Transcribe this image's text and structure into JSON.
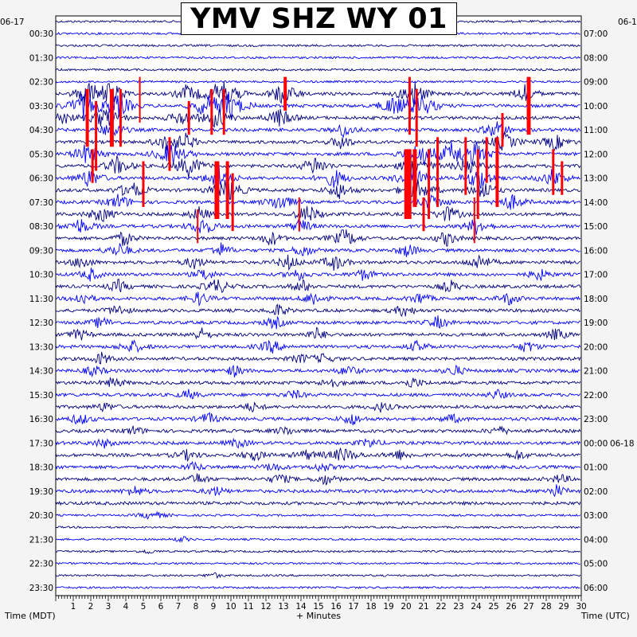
{
  "chart_data": {
    "type": "helicorder",
    "title": "YMV SHZ WY 01",
    "left_date": "06-17",
    "right_date_top": "06-1",
    "right_date_change": "06-18",
    "xlabel": "+ Minutes",
    "ylabel_left": "Time (MDT)",
    "ylabel_right": "Time (UTC)",
    "xlim": [
      0,
      30
    ],
    "x_ticks": [
      "1",
      "2",
      "3",
      "4",
      "5",
      "6",
      "7",
      "8",
      "9",
      "10",
      "11",
      "12",
      "13",
      "14",
      "15",
      "16",
      "17",
      "18",
      "19",
      "20",
      "21",
      "22",
      "23",
      "24",
      "25",
      "26",
      "27",
      "28",
      "29",
      "30"
    ],
    "left_labels": [
      "00:30",
      "01:30",
      "02:30",
      "03:30",
      "04:30",
      "05:30",
      "06:30",
      "07:30",
      "08:30",
      "09:30",
      "10:30",
      "11:30",
      "12:30",
      "13:30",
      "14:30",
      "15:30",
      "16:30",
      "17:30",
      "18:30",
      "19:30",
      "20:30",
      "21:30",
      "22:30",
      "23:30"
    ],
    "right_labels": [
      "07:00",
      "08:00",
      "09:00",
      "10:00",
      "11:00",
      "12:00",
      "13:00",
      "14:00",
      "15:00",
      "16:00",
      "17:00",
      "18:00",
      "19:00",
      "20:00",
      "21:00",
      "22:00",
      "23:00",
      "00:00",
      "01:00",
      "02:00",
      "03:00",
      "04:00",
      "05:00",
      "06:00"
    ],
    "trace_colors": [
      "#00007f",
      "#0000ff"
    ],
    "clip_color": "#ff0000",
    "traces_per_hour": 2,
    "trace_count": 48
  }
}
